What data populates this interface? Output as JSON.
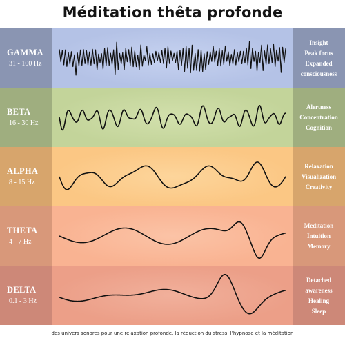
{
  "title": "Méditation thêta profonde",
  "footer": "des univers sonores pour une relaxation profonde, la réduction du stress, l’hypnose et la méditation",
  "bands": [
    {
      "name": "GAMMA",
      "freq": "31 - 100 Hz",
      "effects": [
        "Insight",
        "Peak focus",
        "Expanded",
        "consciousness"
      ],
      "side_color": "#8a95b2",
      "mid_color": "#b4c2e6",
      "mid_color2": "#c6d2f0"
    },
    {
      "name": "BETA",
      "freq": "16 - 30 Hz",
      "effects": [
        "Alertness",
        "Concentration",
        "Cognition"
      ],
      "side_color": "#9fae7f",
      "mid_color": "#c3d49a",
      "mid_color2": "#d2e0ac"
    },
    {
      "name": "ALPHA",
      "freq": "8 - 15 Hz",
      "effects": [
        "Relaxation",
        "Visualization",
        "Creativity"
      ],
      "side_color": "#d7a56c",
      "mid_color": "#fbc784",
      "mid_color2": "#fdd59b"
    },
    {
      "name": "THETA",
      "freq": "4 - 7 Hz",
      "effects": [
        "Meditation",
        "Intuition",
        "Memory"
      ],
      "side_color": "#d8987a",
      "mid_color": "#f9b392",
      "mid_color2": "#fbc3a6"
    },
    {
      "name": "DELTA",
      "freq": "0.1 - 3 Hz",
      "effects": [
        "Detached",
        "awareness",
        "Healing",
        "Sleep"
      ],
      "side_color": "#cd8878",
      "mid_color": "#ec9f88",
      "mid_color2": "#f1b09b"
    }
  ]
}
